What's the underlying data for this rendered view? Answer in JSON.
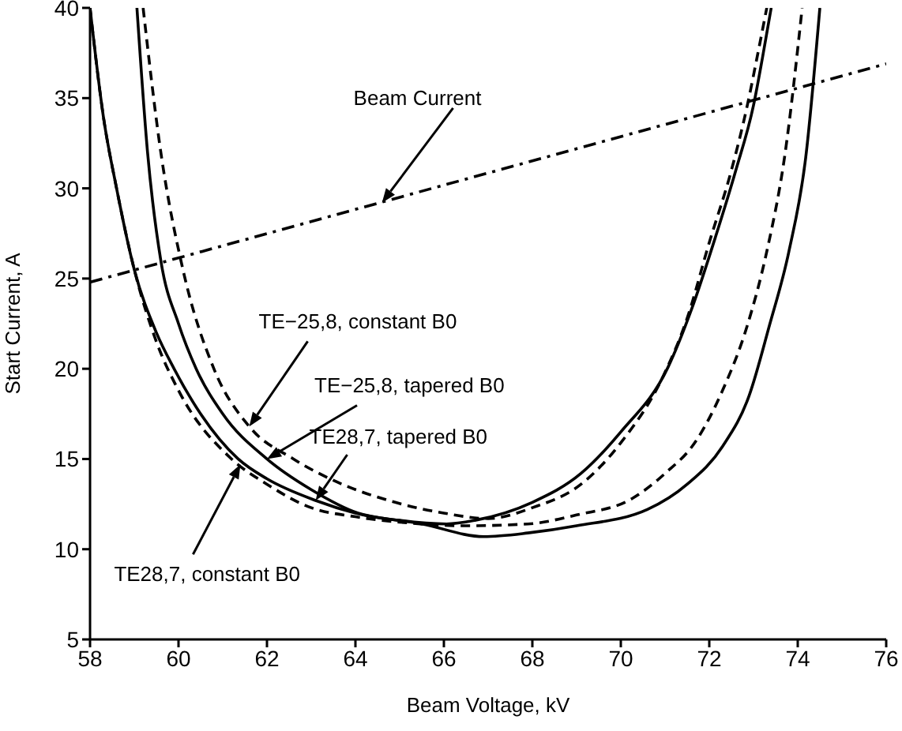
{
  "chart_data": {
    "type": "line",
    "xlabel": "Beam Voltage, kV",
    "ylabel": "Start Current, A",
    "xlim": [
      58,
      76
    ],
    "xticks": [
      58,
      60,
      62,
      64,
      66,
      68,
      70,
      72,
      74,
      76
    ],
    "ylim": [
      5,
      40
    ],
    "yticks": [
      5,
      10,
      15,
      20,
      25,
      30,
      35,
      40
    ],
    "marker": "none",
    "series": [
      {
        "color": "#000000",
        "line_style": "dashdot",
        "x": [
          58,
          76
        ],
        "values": [
          24.8,
          36.9
        ]
      },
      {
        "color": "#000000",
        "line_style": "dashed",
        "x": [
          59.2,
          59.6,
          60.1,
          60.8,
          61.6,
          62.6,
          63.7,
          64.9,
          66.0,
          67.0,
          68.0,
          69.1,
          70.0,
          70.96,
          71.5,
          72.0,
          72.5,
          72.86,
          73.1,
          73.3
        ],
        "values": [
          40,
          32,
          25.5,
          20,
          16.8,
          15,
          13.6,
          12.6,
          12.0,
          11.7,
          12.3,
          13.6,
          15.9,
          19.6,
          22.8,
          27.0,
          31.0,
          34.6,
          37.5,
          40
        ]
      },
      {
        "color": "#000000",
        "line_style": "solid",
        "x": [
          59.06,
          59.3,
          59.6,
          60.0,
          60.4,
          61.0,
          62.0,
          63.0,
          64.06,
          65.0,
          66.06,
          66.7,
          68.0,
          69.1,
          70.0,
          71.07,
          71.6,
          72.14,
          72.6,
          73.0,
          73.2,
          73.4
        ],
        "values": [
          40,
          32,
          26,
          22.5,
          20,
          17.5,
          15,
          13.3,
          12.0,
          11.6,
          11.4,
          11.6,
          12.6,
          14.2,
          16.5,
          20.1,
          23.3,
          27.3,
          31,
          34.6,
          37.2,
          40
        ]
      },
      {
        "color": "#000000",
        "line_style": "dashed",
        "x": [
          58.0,
          58.3,
          58.6,
          59.0,
          59.5,
          60.0,
          61.2,
          62.0,
          63.0,
          64.0,
          65.0,
          66.5,
          67.9,
          69.0,
          70.25,
          71.0,
          71.7,
          72.3,
          72.86,
          73.3,
          73.7,
          74.1
        ],
        "values": [
          40,
          34,
          30,
          25.5,
          21.5,
          18.8,
          15,
          13.6,
          12.3,
          11.8,
          11.5,
          11.3,
          11.4,
          11.9,
          12.8,
          14.2,
          16.0,
          18.8,
          22.4,
          26.5,
          31.7,
          40
        ]
      },
      {
        "color": "#000000",
        "line_style": "solid",
        "x": [
          58.0,
          58.3,
          58.6,
          59.0,
          59.5,
          59.9,
          60.5,
          61.35,
          62.0,
          63.1,
          64.0,
          65.5,
          66.9,
          67.9,
          69.0,
          70.6,
          71.5,
          72.3,
          72.9,
          73.36,
          73.8,
          74.18,
          74.5
        ],
        "values": [
          40,
          34,
          30,
          25.5,
          22,
          20,
          17.5,
          15,
          13.9,
          12.7,
          12.0,
          11.4,
          10.7,
          10.9,
          11.3,
          12.2,
          13.6,
          15.7,
          18.5,
          22.4,
          26.5,
          31.7,
          40
        ]
      }
    ],
    "annotations": [
      {
        "text": "Beam Current",
        "x": 64.6,
        "y": 29.2
      },
      {
        "text": "TE−25,8, constant B0",
        "x": 61.6,
        "y": 16.8
      },
      {
        "text": "TE−25,8, tapered B0",
        "x": 62.0,
        "y": 15.0
      },
      {
        "text": "TE28,7, tapered B0",
        "x": 63.1,
        "y": 12.7
      },
      {
        "text": "TE28,7, constant B0",
        "x": 61.4,
        "y": 14.7
      }
    ]
  }
}
